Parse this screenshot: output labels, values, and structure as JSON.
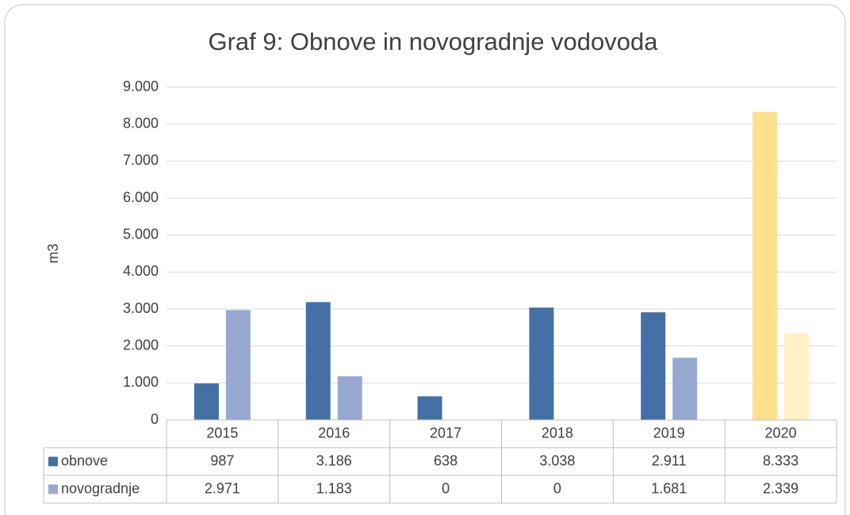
{
  "chart_data": {
    "type": "bar",
    "title": "Graf 9: Obnove in novogradnje vodovoda",
    "y_label": "m3",
    "categories": [
      "2015",
      "2016",
      "2017",
      "2018",
      "2019",
      "2020"
    ],
    "series": [
      {
        "name": "obnove",
        "color": "#4470a5",
        "colors": [
          "#4470a5",
          "#4470a5",
          "#4470a5",
          "#4470a5",
          "#4470a5",
          "#ffe08f"
        ],
        "values": [
          987,
          3186,
          638,
          3038,
          2911,
          8333
        ],
        "value_labels": [
          "987",
          "3.186",
          "638",
          "3.038",
          "2.911",
          "8.333"
        ]
      },
      {
        "name": "novogradnje",
        "color": "#97a9d0",
        "colors": [
          "#97a9d0",
          "#97a9d0",
          "#97a9d0",
          "#97a9d0",
          "#97a9d0",
          "#fff0c6"
        ],
        "values": [
          2971,
          1183,
          0,
          0,
          1681,
          2339
        ],
        "value_labels": [
          "2.971",
          "1.183",
          "0",
          "0",
          "1.681",
          "2.339"
        ]
      }
    ],
    "ylim": [
      0,
      9000
    ],
    "yticks": [
      0,
      {
        "value": 1000,
        "label": "1.000"
      },
      {
        "value": 2000,
        "label": "2.000"
      },
      {
        "value": 3000,
        "label": "3.000"
      },
      {
        "value": 4000,
        "label": "4.000"
      },
      {
        "value": 5000,
        "label": "5.000"
      },
      {
        "value": 6000,
        "label": "6.000"
      },
      {
        "value": 7000,
        "label": "7.000"
      },
      {
        "value": 8000,
        "label": "8.000"
      },
      {
        "value": 9000,
        "label": "9.000"
      }
    ],
    "grid": true,
    "data_table": true
  }
}
